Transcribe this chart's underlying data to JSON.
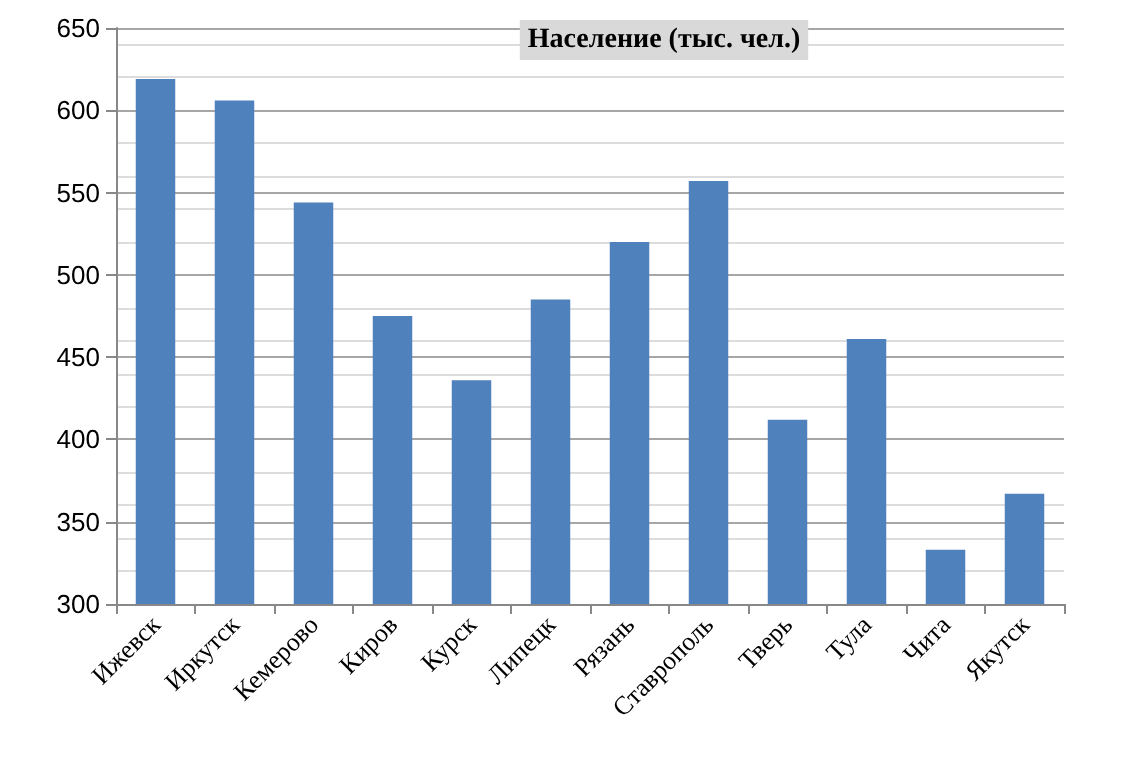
{
  "chart_data": {
    "type": "bar",
    "title": "Население (тыс. чел.)",
    "categories": [
      "Ижевск",
      "Иркутск",
      "Кемерово",
      "Киров",
      "Курск",
      "Липецк",
      "Рязань",
      "Ставрополь",
      "Тверь",
      "Тула",
      "Чита",
      "Якутск"
    ],
    "values": [
      619,
      606,
      544,
      475,
      436,
      485,
      520,
      557,
      412,
      461,
      333,
      367
    ],
    "color": "#4f81bd",
    "ylim": [
      300,
      650
    ],
    "yticks": [
      300,
      350,
      400,
      450,
      500,
      550,
      600,
      650
    ],
    "grid": "y"
  }
}
